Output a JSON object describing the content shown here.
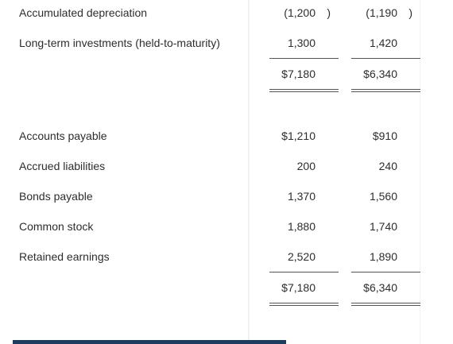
{
  "rows": {
    "accum_dep": {
      "label": "Accumulated depreciation",
      "c1": "(1,200",
      "c1_paren": ")",
      "c2": "(1,190",
      "c2_paren": ")"
    },
    "lt_invest": {
      "label": "Long-term investments (held-to-maturity)",
      "c1": "1,300",
      "c2": "1,420"
    },
    "total_assets": {
      "c1": "$7,180",
      "c2": "$6,340"
    },
    "accounts_payable": {
      "label": "Accounts payable",
      "c1": "$1,210",
      "c2": "$910"
    },
    "accrued_liab": {
      "label": "Accrued liabilities",
      "c1": "200",
      "c2": "240"
    },
    "bonds_payable": {
      "label": "Bonds payable",
      "c1": "1,370",
      "c2": "1,560"
    },
    "common_stock": {
      "label": "Common stock",
      "c1": "1,880",
      "c2": "1,740"
    },
    "retained_earnings": {
      "label": "Retained earnings",
      "c1": "2,520",
      "c2": "1,890"
    },
    "total_liab_equity": {
      "c1": "$7,180",
      "c2": "$6,340"
    }
  }
}
